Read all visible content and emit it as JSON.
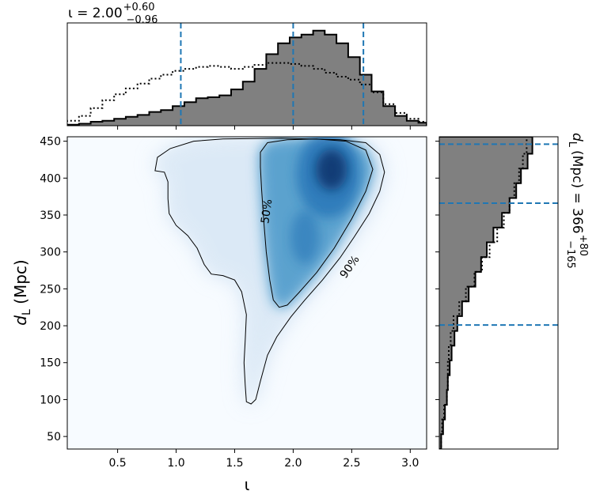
{
  "chart_data": {
    "type": "corner",
    "main_panel": {
      "type": "heatmap",
      "xlabel": "ι",
      "ylabel": "d_L (Mpc)",
      "xlim": [
        0.07,
        3.14
      ],
      "ylim": [
        33,
        456
      ],
      "x_ticks": [
        0.5,
        1.0,
        1.5,
        2.0,
        2.5,
        3.0
      ],
      "x_tick_labels": [
        "0.5",
        "1.0",
        "1.5",
        "2.0",
        "2.5",
        "3.0"
      ],
      "y_ticks": [
        50,
        100,
        150,
        200,
        250,
        300,
        350,
        400,
        450
      ],
      "y_tick_labels": [
        "50",
        "100",
        "150",
        "200",
        "250",
        "300",
        "350",
        "400",
        "450"
      ],
      "colormap": "Blues",
      "density_peak": {
        "x": 2.3,
        "y": 405
      },
      "contours": [
        {
          "label": "50%",
          "label_position": {
            "x": 1.77,
            "y": 355
          },
          "points": [
            [
              1.72,
              435
            ],
            [
              1.78,
              448
            ],
            [
              1.95,
              452
            ],
            [
              2.2,
              453
            ],
            [
              2.45,
              450
            ],
            [
              2.62,
              438
            ],
            [
              2.68,
              412
            ],
            [
              2.62,
              382
            ],
            [
              2.5,
              345
            ],
            [
              2.35,
              305
            ],
            [
              2.2,
              272
            ],
            [
              2.05,
              245
            ],
            [
              1.95,
              228
            ],
            [
              1.88,
              225
            ],
            [
              1.83,
              235
            ],
            [
              1.8,
              262
            ],
            [
              1.77,
              300
            ],
            [
              1.75,
              340
            ],
            [
              1.73,
              385
            ],
            [
              1.72,
              415
            ],
            [
              1.72,
              435
            ]
          ]
        },
        {
          "label": "90%",
          "label_position": {
            "x": 2.48,
            "y": 280
          },
          "points": [
            [
              0.82,
              410
            ],
            [
              0.84,
              428
            ],
            [
              0.95,
              440
            ],
            [
              1.15,
              450
            ],
            [
              1.4,
              453
            ],
            [
              1.9,
              454
            ],
            [
              2.4,
              452
            ],
            [
              2.62,
              448
            ],
            [
              2.74,
              432
            ],
            [
              2.78,
              408
            ],
            [
              2.74,
              382
            ],
            [
              2.65,
              352
            ],
            [
              2.52,
              320
            ],
            [
              2.4,
              292
            ],
            [
              2.25,
              262
            ],
            [
              2.1,
              235
            ],
            [
              1.98,
              212
            ],
            [
              1.86,
              185
            ],
            [
              1.78,
              160
            ],
            [
              1.72,
              125
            ],
            [
              1.68,
              100
            ],
            [
              1.64,
              94
            ],
            [
              1.6,
              97
            ],
            [
              1.59,
              120
            ],
            [
              1.58,
              150
            ],
            [
              1.59,
              180
            ],
            [
              1.6,
              215
            ],
            [
              1.56,
              246
            ],
            [
              1.5,
              262
            ],
            [
              1.4,
              268
            ],
            [
              1.3,
              270
            ],
            [
              1.24,
              283
            ],
            [
              1.18,
              305
            ],
            [
              1.1,
              322
            ],
            [
              1.0,
              336
            ],
            [
              0.94,
              352
            ],
            [
              0.93,
              372
            ],
            [
              0.93,
              395
            ],
            [
              0.9,
              408
            ],
            [
              0.82,
              410
            ]
          ]
        }
      ]
    },
    "top_panel": {
      "type": "histogram",
      "title": "ι = 2.00^{+0.60}_{−0.96}",
      "title_main": "ι = 2.00",
      "title_sup": "+0.60",
      "title_sub": "−0.96",
      "median": 2.0,
      "credible_interval": [
        1.04,
        2.6
      ],
      "posterior_step": {
        "bin_edges": [
          0.07,
          0.17,
          0.27,
          0.37,
          0.47,
          0.57,
          0.67,
          0.77,
          0.87,
          0.97,
          1.07,
          1.17,
          1.27,
          1.37,
          1.47,
          1.57,
          1.67,
          1.77,
          1.87,
          1.97,
          2.07,
          2.17,
          2.27,
          2.37,
          2.47,
          2.57,
          2.67,
          2.77,
          2.87,
          2.97,
          3.07,
          3.14
        ],
        "counts": [
          0.01,
          0.02,
          0.04,
          0.05,
          0.07,
          0.09,
          0.11,
          0.14,
          0.16,
          0.2,
          0.24,
          0.28,
          0.29,
          0.31,
          0.37,
          0.45,
          0.58,
          0.73,
          0.84,
          0.9,
          0.93,
          0.97,
          0.93,
          0.84,
          0.7,
          0.52,
          0.35,
          0.2,
          0.1,
          0.05,
          0.03
        ]
      },
      "prior_step": {
        "bin_edges": [
          0.07,
          0.17,
          0.27,
          0.37,
          0.47,
          0.57,
          0.67,
          0.77,
          0.87,
          0.97,
          1.07,
          1.17,
          1.27,
          1.37,
          1.47,
          1.57,
          1.67,
          1.77,
          1.87,
          1.97,
          2.07,
          2.17,
          2.27,
          2.37,
          2.47,
          2.57,
          2.67,
          2.77,
          2.87,
          2.97,
          3.07,
          3.14
        ],
        "counts": [
          0.05,
          0.1,
          0.18,
          0.26,
          0.32,
          0.38,
          0.43,
          0.48,
          0.52,
          0.56,
          0.58,
          0.6,
          0.61,
          0.6,
          0.58,
          0.6,
          0.62,
          0.64,
          0.64,
          0.63,
          0.61,
          0.58,
          0.54,
          0.5,
          0.47,
          0.42,
          0.34,
          0.22,
          0.13,
          0.07,
          0.04
        ]
      }
    },
    "right_panel": {
      "type": "histogram",
      "orientation": "horizontal",
      "title": "d_L (Mpc) = 366^{+80}_{−165}",
      "title_main": "(Mpc) = 366",
      "title_sup": "+80",
      "title_sub": "−165",
      "median": 366,
      "credible_interval": [
        201,
        446
      ],
      "posterior_step": {
        "bin_edges": [
          33,
          53,
          73,
          93,
          113,
          133,
          153,
          173,
          193,
          213,
          233,
          253,
          273,
          293,
          313,
          333,
          353,
          373,
          393,
          413,
          433,
          456
        ],
        "counts": [
          0.02,
          0.04,
          0.06,
          0.08,
          0.09,
          0.11,
          0.13,
          0.16,
          0.19,
          0.24,
          0.31,
          0.38,
          0.44,
          0.5,
          0.57,
          0.66,
          0.74,
          0.81,
          0.86,
          0.93,
          0.98
        ]
      },
      "prior_step": {
        "bin_edges": [
          33,
          53,
          73,
          93,
          113,
          133,
          153,
          173,
          193,
          213,
          233,
          253,
          273,
          293,
          313,
          333,
          353,
          373,
          393,
          413,
          433,
          456
        ],
        "counts": [
          0.02,
          0.03,
          0.05,
          0.08,
          0.09,
          0.09,
          0.1,
          0.12,
          0.15,
          0.21,
          0.28,
          0.37,
          0.45,
          0.53,
          0.61,
          0.68,
          0.74,
          0.79,
          0.84,
          0.88,
          0.92
        ]
      }
    }
  }
}
